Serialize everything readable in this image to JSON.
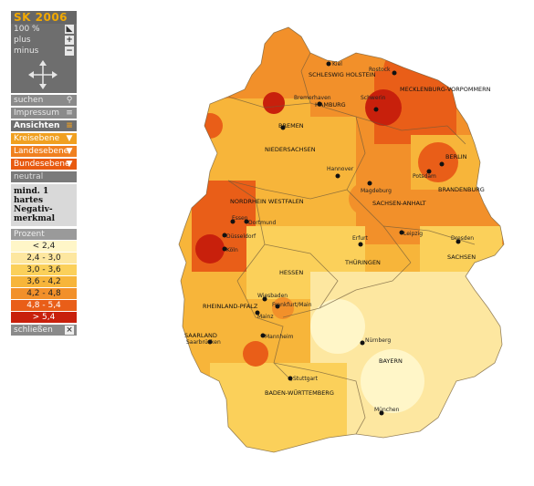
{
  "sidebar": {
    "title": "SK 2006",
    "zoom_level": "100 %",
    "plus_label": "plus",
    "minus_label": "minus",
    "search_label": "suchen",
    "impressum_label": "Impressum",
    "views_label": "Ansichten",
    "levels": [
      "Kreisebene",
      "Landesebene",
      "Bundesebene"
    ],
    "neutral_label": "neutral",
    "description": "mind. 1 hartes Negativ-merkmal",
    "legend_title": "Prozent",
    "legend": [
      {
        "label": "< 2,4",
        "color": "#fff6c8"
      },
      {
        "label": "2,4 - 3,0",
        "color": "#fde7a0"
      },
      {
        "label": "3,0 - 3,6",
        "color": "#fbd05a"
      },
      {
        "label": "3,6 - 4,2",
        "color": "#f7b53a"
      },
      {
        "label": "4,2 - 4,8",
        "color": "#f2902a"
      },
      {
        "label": "4,8 - 5,4",
        "color": "#e95e18"
      },
      {
        "label": "> 5,4",
        "color": "#c8200c"
      }
    ],
    "close_label": "schließen"
  },
  "map": {
    "states": [
      "SCHLESWIG HOLSTEIN",
      "MECKLENBURG-VORPOMMERN",
      "HAMBURG",
      "BREMEN",
      "NIEDERSACHSEN",
      "BERLIN",
      "BRANDENBURG",
      "NORDRHEIN WESTFALEN",
      "SACHSEN-ANHALT",
      "SACHSEN",
      "THÜRINGEN",
      "HESSEN",
      "RHEINLAND-PFALZ",
      "SAARLAND",
      "BADEN-WÜRTTEMBERG",
      "BAYERN"
    ],
    "cities": [
      "Kiel",
      "Rostock",
      "Bremerhaven",
      "Schwerin",
      "Potsdam",
      "Hannover",
      "Magdeburg",
      "Essen",
      "Dortmund",
      "Düsseldorf",
      "Köln",
      "Erfurt",
      "Leipzig",
      "Dresden",
      "Wiesbaden",
      "Frankfurt/Main",
      "Mainz",
      "Mannheim",
      "Saarbrücken",
      "Nürnberg",
      "Stuttgart",
      "München"
    ]
  }
}
